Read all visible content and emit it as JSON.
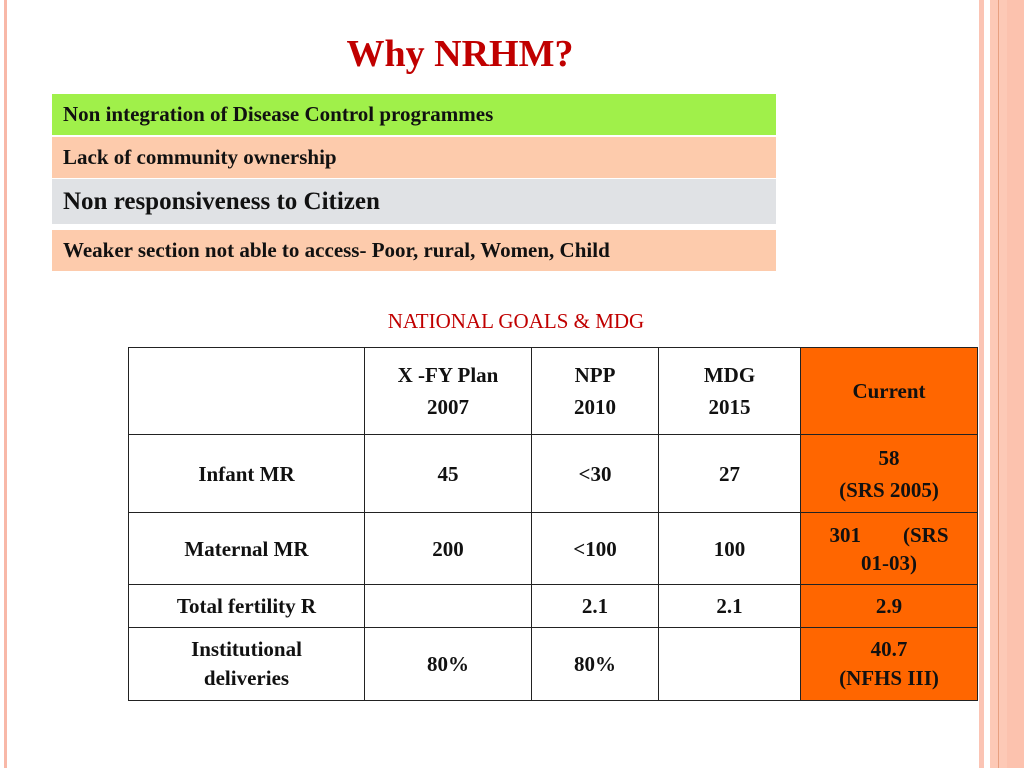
{
  "title": "Why NRHM?",
  "reasons": [
    {
      "text": "Non integration of Disease Control programmes",
      "color": "#a0f04a"
    },
    {
      "text": "Lack of  community ownership",
      "color": "#fdcbac"
    },
    {
      "text": "Non responsiveness to Citizen",
      "color": "#e0e2e5"
    },
    {
      "text": "Weaker section not able  to access- Poor, rural, Women, Child",
      "color": "#fdcbac"
    }
  ],
  "table_title": "NATIONAL GOALS & MDG",
  "table": {
    "headers": [
      {
        "line1": "",
        "line2": ""
      },
      {
        "line1": "X -FY Plan",
        "line2": "2007"
      },
      {
        "line1": "NPP",
        "line2": "2010"
      },
      {
        "line1": "MDG",
        "line2": "2015"
      },
      {
        "line1": "Current",
        "line2": ""
      }
    ],
    "rows": [
      {
        "label": "Infant MR",
        "values": [
          "45",
          "<30",
          "27"
        ],
        "current": [
          "58",
          "(SRS 2005)"
        ]
      },
      {
        "label": "Maternal MR",
        "values": [
          "200",
          "<100",
          "100"
        ],
        "current": [
          "301        (SRS",
          "01-03)"
        ]
      },
      {
        "label": "Total fertility R",
        "values": [
          "",
          "2.1",
          "2.1"
        ],
        "current": [
          "2.9",
          ""
        ]
      },
      {
        "label": "Institutional deliveries",
        "values": [
          "80%",
          "80%",
          ""
        ],
        "current": [
          "40.7",
          "(NFHS III)"
        ]
      }
    ],
    "current_color": "#ff6600"
  }
}
